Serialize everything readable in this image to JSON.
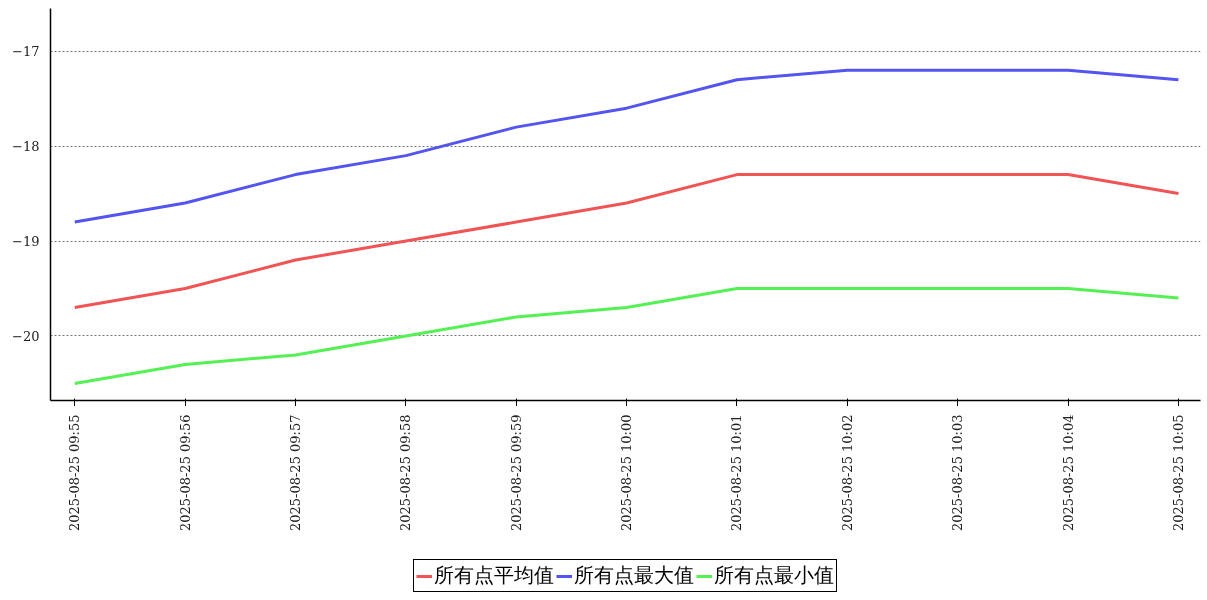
{
  "chart_data": {
    "type": "line",
    "categories": [
      "2025-08-25 09:55",
      "2025-08-25 09:56",
      "2025-08-25 09:57",
      "2025-08-25 09:58",
      "2025-08-25 09:59",
      "2025-08-25 10:00",
      "2025-08-25 10:01",
      "2025-08-25 10:02",
      "2025-08-25 10:03",
      "2025-08-25 10:04",
      "2025-08-25 10:05"
    ],
    "series": [
      {
        "name": "所有点平均值",
        "color": "#f05454",
        "values": [
          -19.7,
          -19.5,
          -19.2,
          -19.0,
          -18.8,
          -18.6,
          -18.3,
          -18.3,
          -18.3,
          -18.3,
          -18.5
        ]
      },
      {
        "name": "所有点最大值",
        "color": "#5454f0",
        "values": [
          -18.8,
          -18.6,
          -18.3,
          -18.1,
          -17.8,
          -17.6,
          -17.3,
          -17.2,
          -17.2,
          -17.2,
          -17.3
        ]
      },
      {
        "name": "所有点最小值",
        "color": "#54f054",
        "values": [
          -20.5,
          -20.3,
          -20.2,
          -20.0,
          -19.8,
          -19.7,
          -19.5,
          -19.5,
          -19.5,
          -19.5,
          -19.6
        ]
      }
    ],
    "ylim": [
      -20.68,
      -16.55
    ],
    "yticks": [
      -20,
      -19,
      -18,
      -17
    ],
    "grid": "y",
    "legend": "bottom",
    "marker": "none",
    "line_style": "solid"
  }
}
